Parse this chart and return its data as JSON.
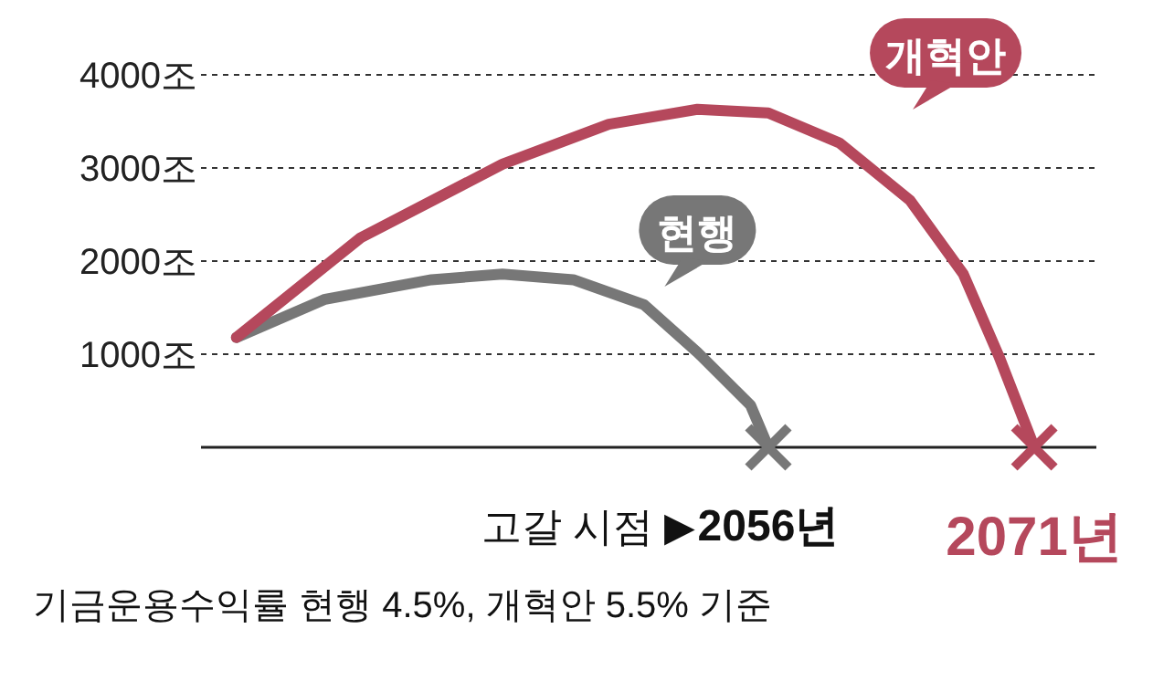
{
  "chart_data": {
    "type": "line",
    "xlabel": "고갈 시점 ▶",
    "annotations": [
      "기금운용수익률 현행 4.5%, 개혁안 5.5% 기준"
    ],
    "xlim": [
      2024,
      2074.5
    ],
    "xticks": [
      {
        "value": 2056,
        "label": "2056년"
      },
      {
        "value": 2071,
        "label": "2071년"
      }
    ],
    "ylim": [
      0,
      4000
    ],
    "yticks": [
      {
        "value": 1000,
        "label": "1000조"
      },
      {
        "value": 2000,
        "label": "2000조"
      },
      {
        "value": 3000,
        "label": "3000조"
      },
      {
        "value": 4000,
        "label": "4000조"
      }
    ],
    "grid": "y",
    "series": [
      {
        "name": "현행",
        "color": "#777777",
        "x": [
          2026,
          2031,
          2037,
          2041,
          2045,
          2049,
          2052,
          2055,
          2056
        ],
        "values": [
          1180,
          1590,
          1800,
          1860,
          1800,
          1530,
          1020,
          450,
          0
        ]
      },
      {
        "name": "개혁안",
        "color": "#b5485c",
        "x": [
          2026,
          2033,
          2041,
          2047,
          2052,
          2056,
          2060,
          2064,
          2067,
          2069,
          2071
        ],
        "values": [
          1180,
          2250,
          3040,
          3470,
          3630,
          3590,
          3270,
          2650,
          1860,
          980,
          0
        ]
      }
    ]
  }
}
